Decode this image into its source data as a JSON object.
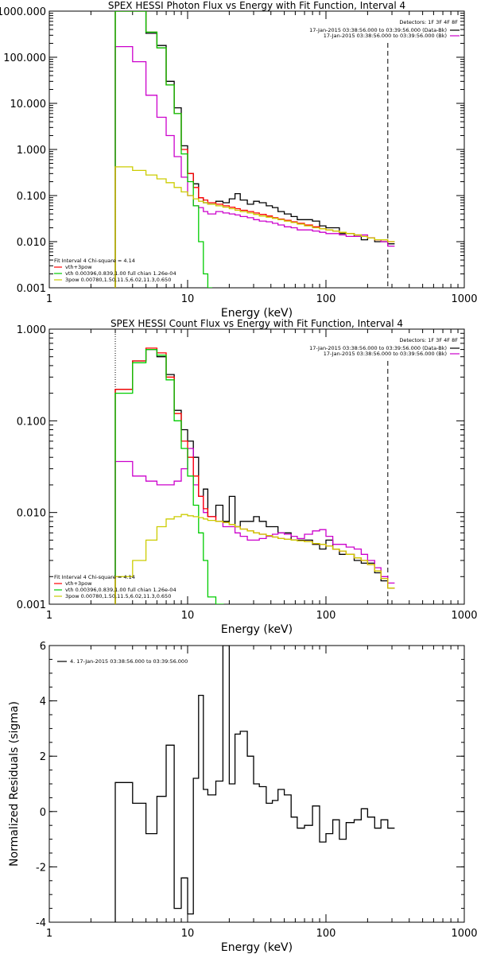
{
  "chart_data": [
    {
      "type": "line",
      "step": true,
      "title": "SPEX HESSI Photon Flux vs Energy with Fit Function, Interval 4",
      "xlabel": "Energy (keV)",
      "ylabel": "",
      "xscale": "log",
      "yscale": "log",
      "xlim": [
        1,
        1000
      ],
      "ylim": [
        0.001,
        1000
      ],
      "x_ticks": [
        "1",
        "10",
        "100",
        "1000"
      ],
      "y_ticks": [
        "0.001",
        "0.010",
        "0.100",
        "1.000",
        "10.000",
        "100.000",
        "1000.000"
      ],
      "legend_topright": {
        "detectors": "Detectors: 1F 3F 4F 8F",
        "entries": [
          {
            "label": "17-Jan-2015 03:38:56.000 to 03:39:56.000 (Data-Bk)",
            "color": "#000000"
          },
          {
            "label": "17-Jan-2015 03:38:56.000 to 03:39:56.000 (Bk)",
            "color": "#cc00cc"
          }
        ]
      },
      "legend_bottomleft": {
        "header": "Fit Interval 4    Chi-square = 4.14",
        "entries": [
          {
            "label": "vth+3pow",
            "color": "#ff0000"
          },
          {
            "label": "vth 0.00396,0.839,1.00    full chian 1.26e-04",
            "color": "#00cc00"
          },
          {
            "label": "3pow 0.00780,1.50,11.5,6.02,11.3,0.650",
            "color": "#cccc00"
          }
        ]
      },
      "vlines_dotted": [
        3
      ],
      "vlines_dashed": [
        280
      ],
      "series": [
        {
          "name": "Data-Bk",
          "color": "#000000",
          "x": [
            3,
            4,
            5,
            6,
            7,
            8,
            9,
            10,
            11,
            12,
            13,
            14,
            16,
            18,
            20,
            22,
            24,
            27,
            30,
            33,
            37,
            41,
            45,
            50,
            56,
            62,
            70,
            80,
            90,
            100,
            112,
            125,
            140,
            160,
            180,
            200,
            225,
            250,
            280
          ],
          "y": [
            1000,
            1000,
            330,
            180,
            30,
            8,
            1.2,
            0.3,
            0.18,
            0.09,
            0.07,
            0.065,
            0.075,
            0.07,
            0.085,
            0.11,
            0.08,
            0.065,
            0.075,
            0.07,
            0.06,
            0.055,
            0.045,
            0.04,
            0.035,
            0.03,
            0.03,
            0.028,
            0.022,
            0.02,
            0.02,
            0.015,
            0.015,
            0.013,
            0.011,
            0.012,
            0.01,
            0.01,
            0.009
          ]
        },
        {
          "name": "Bk",
          "color": "#cc00cc",
          "x": [
            3,
            4,
            5,
            6,
            7,
            8,
            9,
            10,
            11,
            12,
            13,
            14,
            16,
            18,
            20,
            22,
            24,
            27,
            30,
            33,
            37,
            41,
            45,
            50,
            56,
            62,
            70,
            80,
            90,
            100,
            112,
            125,
            140,
            160,
            180,
            200,
            225,
            250,
            280
          ],
          "y": [
            170,
            80,
            15,
            5,
            2,
            0.7,
            0.25,
            0.1,
            0.06,
            0.055,
            0.045,
            0.04,
            0.045,
            0.042,
            0.04,
            0.038,
            0.035,
            0.033,
            0.03,
            0.028,
            0.027,
            0.025,
            0.023,
            0.021,
            0.02,
            0.018,
            0.018,
            0.017,
            0.016,
            0.015,
            0.015,
            0.014,
            0.013,
            0.013,
            0.014,
            0.012,
            0.011,
            0.01,
            0.008
          ]
        },
        {
          "name": "vth+3pow",
          "color": "#ff0000",
          "x": [
            3,
            4,
            5,
            6,
            7,
            8,
            9,
            10,
            11,
            12,
            13,
            14,
            16,
            18,
            20,
            22,
            24,
            27,
            30,
            33,
            37,
            41,
            45,
            50,
            56,
            62,
            70,
            80,
            90,
            100,
            112,
            125,
            140,
            160,
            180,
            200,
            225,
            250,
            280
          ],
          "y": [
            1000,
            1000,
            350,
            160,
            25,
            6,
            1.0,
            0.3,
            0.15,
            0.09,
            0.08,
            0.07,
            0.065,
            0.06,
            0.056,
            0.052,
            0.048,
            0.045,
            0.042,
            0.039,
            0.036,
            0.033,
            0.031,
            0.029,
            0.027,
            0.025,
            0.023,
            0.021,
            0.019,
            0.018,
            0.017,
            0.016,
            0.015,
            0.014,
            0.013,
            0.012,
            0.011,
            0.011,
            0.01
          ]
        },
        {
          "name": "vth",
          "color": "#00cc00",
          "x": [
            3,
            4,
            5,
            6,
            7,
            8,
            9,
            10,
            11,
            12,
            13,
            14
          ],
          "y": [
            1000,
            1000,
            350,
            160,
            25,
            6,
            0.8,
            0.2,
            0.06,
            0.01,
            0.002,
            0.0001
          ]
        },
        {
          "name": "3pow",
          "color": "#cccc00",
          "x": [
            3,
            4,
            5,
            6,
            7,
            8,
            9,
            10,
            11,
            12,
            13,
            14,
            16,
            18,
            20,
            22,
            24,
            27,
            30,
            33,
            37,
            41,
            45,
            50,
            56,
            62,
            70,
            80,
            90,
            100,
            112,
            125,
            140,
            160,
            180,
            200,
            225,
            250,
            280
          ],
          "y": [
            0.42,
            0.35,
            0.28,
            0.23,
            0.19,
            0.15,
            0.12,
            0.1,
            0.085,
            0.075,
            0.07,
            0.065,
            0.06,
            0.056,
            0.052,
            0.048,
            0.045,
            0.042,
            0.039,
            0.036,
            0.034,
            0.032,
            0.03,
            0.028,
            0.026,
            0.024,
            0.022,
            0.02,
            0.019,
            0.018,
            0.017,
            0.016,
            0.015,
            0.014,
            0.013,
            0.012,
            0.011,
            0.011,
            0.01
          ]
        }
      ]
    },
    {
      "type": "line",
      "step": true,
      "title": "SPEX HESSI Count Flux vs Energy with Fit Function, Interval 4",
      "xlabel": "Energy (keV)",
      "ylabel": "",
      "xscale": "log",
      "yscale": "log",
      "xlim": [
        1,
        1000
      ],
      "ylim": [
        0.001,
        1
      ],
      "x_ticks": [
        "1",
        "10",
        "100",
        "1000"
      ],
      "y_ticks": [
        "0.001",
        "0.010",
        "0.100",
        "1.000"
      ],
      "legend_topright": {
        "detectors": "Detectors: 1F 3F 4F 8F",
        "entries": [
          {
            "label": "17-Jan-2015 03:38:56.000 to 03:39:56.000 (Data-Bk)",
            "color": "#000000"
          },
          {
            "label": "17-Jan-2015 03:38:56.000 to 03:39:56.000 (Bk)",
            "color": "#cc00cc"
          }
        ]
      },
      "legend_bottomleft": {
        "header": "Fit Interval 4    Chi-square = 4.14",
        "entries": [
          {
            "label": "vth+3pow",
            "color": "#ff0000"
          },
          {
            "label": "vth 0.00396,0.839,1.00    full chian 1.26e-04",
            "color": "#00cc00"
          },
          {
            "label": "3pow 0.00780,1.50,11.5,6.02,11.3,0.650",
            "color": "#cccc00"
          }
        ]
      },
      "vlines_dotted": [
        3
      ],
      "vlines_dashed": [
        280
      ],
      "series": [
        {
          "name": "Data-Bk",
          "color": "#000000",
          "x": [
            3,
            4,
            5,
            6,
            7,
            8,
            9,
            10,
            11,
            12,
            13,
            14,
            16,
            18,
            20,
            22,
            24,
            27,
            30,
            33,
            37,
            41,
            45,
            50,
            56,
            62,
            70,
            80,
            90,
            100,
            112,
            125,
            140,
            160,
            180,
            200,
            225,
            250,
            280
          ],
          "y": [
            0.22,
            0.45,
            0.6,
            0.5,
            0.32,
            0.13,
            0.08,
            0.06,
            0.04,
            0.015,
            0.018,
            0.009,
            0.012,
            0.008,
            0.015,
            0.007,
            0.008,
            0.008,
            0.009,
            0.008,
            0.007,
            0.007,
            0.006,
            0.006,
            0.005,
            0.005,
            0.005,
            0.0045,
            0.004,
            0.005,
            0.004,
            0.0035,
            0.0035,
            0.003,
            0.0028,
            0.0028,
            0.0022,
            0.0018,
            0.0015
          ]
        },
        {
          "name": "Bk",
          "color": "#cc00cc",
          "x": [
            3,
            4,
            5,
            6,
            7,
            8,
            9,
            10,
            11,
            12,
            13,
            14,
            16,
            18,
            20,
            22,
            24,
            27,
            30,
            33,
            37,
            41,
            45,
            50,
            56,
            62,
            70,
            80,
            90,
            100,
            112,
            125,
            140,
            160,
            180,
            200,
            225,
            250,
            280
          ],
          "y": [
            0.036,
            0.025,
            0.022,
            0.02,
            0.02,
            0.022,
            0.03,
            0.05,
            0.02,
            0.015,
            0.01,
            0.009,
            0.008,
            0.007,
            0.007,
            0.006,
            0.0055,
            0.005,
            0.005,
            0.0052,
            0.0055,
            0.0058,
            0.006,
            0.0058,
            0.0055,
            0.0052,
            0.0058,
            0.0063,
            0.0065,
            0.0055,
            0.0045,
            0.0045,
            0.0042,
            0.004,
            0.0035,
            0.003,
            0.0025,
            0.002,
            0.0017
          ]
        },
        {
          "name": "vth+3pow",
          "color": "#ff0000",
          "x": [
            3,
            4,
            5,
            6,
            7,
            8,
            9,
            10,
            11,
            12,
            13,
            14,
            16,
            18,
            20,
            22,
            24,
            27,
            30,
            33,
            37,
            41,
            45,
            50,
            56,
            62,
            70,
            80,
            90,
            100,
            112,
            125,
            140,
            160,
            180,
            200,
            225,
            250,
            280
          ],
          "y": [
            0.22,
            0.45,
            0.62,
            0.55,
            0.3,
            0.12,
            0.06,
            0.04,
            0.025,
            0.015,
            0.011,
            0.009,
            0.008,
            0.0078,
            0.0074,
            0.007,
            0.0066,
            0.0063,
            0.006,
            0.0058,
            0.0056,
            0.0054,
            0.0052,
            0.0051,
            0.005,
            0.0049,
            0.0048,
            0.0046,
            0.0045,
            0.0043,
            0.004,
            0.0038,
            0.0035,
            0.0032,
            0.003,
            0.0027,
            0.0023,
            0.0019,
            0.0015
          ]
        },
        {
          "name": "vth",
          "color": "#00cc00",
          "x": [
            3,
            4,
            5,
            6,
            7,
            8,
            9,
            10,
            11,
            12,
            13,
            14,
            16
          ],
          "y": [
            0.2,
            0.43,
            0.6,
            0.52,
            0.28,
            0.1,
            0.05,
            0.025,
            0.012,
            0.006,
            0.003,
            0.0012,
            0.0001
          ]
        },
        {
          "name": "3pow",
          "color": "#cccc00",
          "x": [
            3,
            4,
            5,
            6,
            7,
            8,
            9,
            10,
            11,
            12,
            13,
            14,
            16,
            18,
            20,
            22,
            24,
            27,
            30,
            33,
            37,
            41,
            45,
            50,
            56,
            62,
            70,
            80,
            90,
            100,
            112,
            125,
            140,
            160,
            180,
            200,
            225,
            250,
            280
          ],
          "y": [
            0.002,
            0.003,
            0.005,
            0.007,
            0.0085,
            0.009,
            0.0095,
            0.0092,
            0.009,
            0.0088,
            0.0085,
            0.0082,
            0.008,
            0.0078,
            0.0074,
            0.007,
            0.0066,
            0.0063,
            0.006,
            0.0058,
            0.0056,
            0.0054,
            0.0052,
            0.0051,
            0.005,
            0.0049,
            0.0048,
            0.0046,
            0.0045,
            0.0043,
            0.004,
            0.0038,
            0.0035,
            0.0032,
            0.003,
            0.0027,
            0.0023,
            0.0019,
            0.0015
          ]
        }
      ]
    },
    {
      "type": "line",
      "step": true,
      "title": "",
      "xlabel": "Energy (keV)",
      "ylabel": "Normalized Residuals (sigma)",
      "xscale": "log",
      "yscale": "linear",
      "xlim": [
        1,
        1000
      ],
      "ylim": [
        -4,
        6
      ],
      "x_ticks": [
        "1",
        "10",
        "100",
        "1000"
      ],
      "y_ticks": [
        "-4",
        "-2",
        "0",
        "2",
        "4",
        "6"
      ],
      "legend_topleft": {
        "entries": [
          {
            "label": "4. 17-Jan-2015 03:38:56.000 to 03:39:56.000",
            "color": "#000000"
          }
        ]
      },
      "series": [
        {
          "name": "4. 17-Jan-2015 03:38:56.000 to 03:39:56.000",
          "color": "#000000",
          "x": [
            3,
            4,
            5,
            6,
            7,
            8,
            9,
            10,
            11,
            12,
            13,
            14,
            16,
            18,
            20,
            22,
            24,
            27,
            30,
            33,
            37,
            41,
            45,
            50,
            56,
            62,
            70,
            80,
            90,
            100,
            112,
            125,
            140,
            160,
            180,
            200,
            225,
            250,
            280
          ],
          "y": [
            1.05,
            0.3,
            -0.8,
            0.55,
            2.4,
            -3.5,
            -2.4,
            -3.7,
            1.2,
            4.2,
            0.8,
            0.6,
            1.1,
            6.0,
            1.0,
            2.8,
            2.9,
            2.0,
            1.0,
            0.9,
            0.3,
            0.4,
            0.8,
            0.6,
            -0.2,
            -0.6,
            -0.5,
            0.2,
            -1.1,
            -0.8,
            -0.3,
            -1.0,
            -0.4,
            -0.3,
            0.1,
            -0.2,
            -0.6,
            -0.3,
            -0.6
          ]
        }
      ]
    }
  ]
}
